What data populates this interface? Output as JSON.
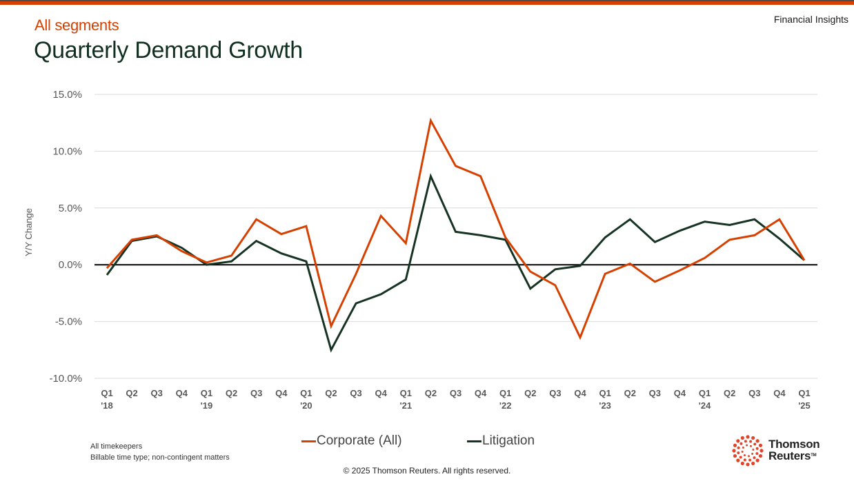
{
  "header": {
    "subtitle": "All segments",
    "title": "Quarterly Demand Growth",
    "brand_tag": "Financial Insights"
  },
  "colors": {
    "accent": "#d64000",
    "litigation": "#163323",
    "title": "#123021",
    "zero_line": "#000000",
    "grid": "#d9d9d9"
  },
  "chart_data": {
    "type": "line",
    "title": "Quarterly Demand Growth",
    "subtitle": "All segments",
    "xlabel": "",
    "ylabel": "Y/Y Change",
    "ylim": [
      -10,
      15
    ],
    "yticks": [
      15,
      10,
      5,
      0,
      -5,
      -10
    ],
    "ytick_labels": [
      "15.0%",
      "10.0%",
      "5.0%",
      "0.0%",
      "-5.0%",
      "-10.0%"
    ],
    "grid": true,
    "legend_position": "bottom-center",
    "x": [
      {
        "q": "Q1",
        "y": "'18"
      },
      {
        "q": "Q2",
        "y": ""
      },
      {
        "q": "Q3",
        "y": ""
      },
      {
        "q": "Q4",
        "y": ""
      },
      {
        "q": "Q1",
        "y": "'19"
      },
      {
        "q": "Q2",
        "y": ""
      },
      {
        "q": "Q3",
        "y": ""
      },
      {
        "q": "Q4",
        "y": ""
      },
      {
        "q": "Q1",
        "y": "'20"
      },
      {
        "q": "Q2",
        "y": ""
      },
      {
        "q": "Q3",
        "y": ""
      },
      {
        "q": "Q4",
        "y": ""
      },
      {
        "q": "Q1",
        "y": "'21"
      },
      {
        "q": "Q2",
        "y": ""
      },
      {
        "q": "Q3",
        "y": ""
      },
      {
        "q": "Q4",
        "y": ""
      },
      {
        "q": "Q1",
        "y": "'22"
      },
      {
        "q": "Q2",
        "y": ""
      },
      {
        "q": "Q3",
        "y": ""
      },
      {
        "q": "Q4",
        "y": ""
      },
      {
        "q": "Q1",
        "y": "'23"
      },
      {
        "q": "Q2",
        "y": ""
      },
      {
        "q": "Q3",
        "y": ""
      },
      {
        "q": "Q4",
        "y": ""
      },
      {
        "q": "Q1",
        "y": "'24"
      },
      {
        "q": "Q2",
        "y": ""
      },
      {
        "q": "Q3",
        "y": ""
      },
      {
        "q": "Q4",
        "y": ""
      },
      {
        "q": "Q1",
        "y": "'25"
      }
    ],
    "series": [
      {
        "name": "Corporate (All)",
        "color": "#d64000",
        "values": [
          -0.3,
          2.2,
          2.6,
          1.2,
          0.2,
          0.8,
          4.0,
          2.7,
          3.4,
          -5.4,
          -0.8,
          4.3,
          1.9,
          12.7,
          8.7,
          7.8,
          2.4,
          -0.6,
          -1.8,
          -6.4,
          -0.8,
          0.1,
          -1.5,
          -0.5,
          0.6,
          2.2,
          2.6,
          4.0,
          0.4
        ]
      },
      {
        "name": "Litigation",
        "color": "#163323",
        "values": [
          -0.9,
          2.1,
          2.5,
          1.5,
          0.0,
          0.3,
          2.1,
          1.0,
          0.3,
          -7.5,
          -3.4,
          -2.6,
          -1.3,
          7.8,
          2.9,
          2.6,
          2.2,
          -2.1,
          -0.4,
          -0.1,
          2.4,
          4.0,
          2.0,
          3.0,
          3.8,
          3.5,
          4.0,
          2.3,
          0.4
        ]
      }
    ]
  },
  "legend": {
    "items": [
      {
        "label": "Corporate (All)"
      },
      {
        "label": "Litigation"
      }
    ]
  },
  "footnotes": {
    "line1": "All timekeepers",
    "line2": "Billable time type; non-contingent matters"
  },
  "footer": {
    "copyright": "© 2025 Thomson Reuters. All rights reserved.",
    "logo_line1": "Thomson",
    "logo_line2": "Reuters",
    "logo_tm": "TM"
  }
}
